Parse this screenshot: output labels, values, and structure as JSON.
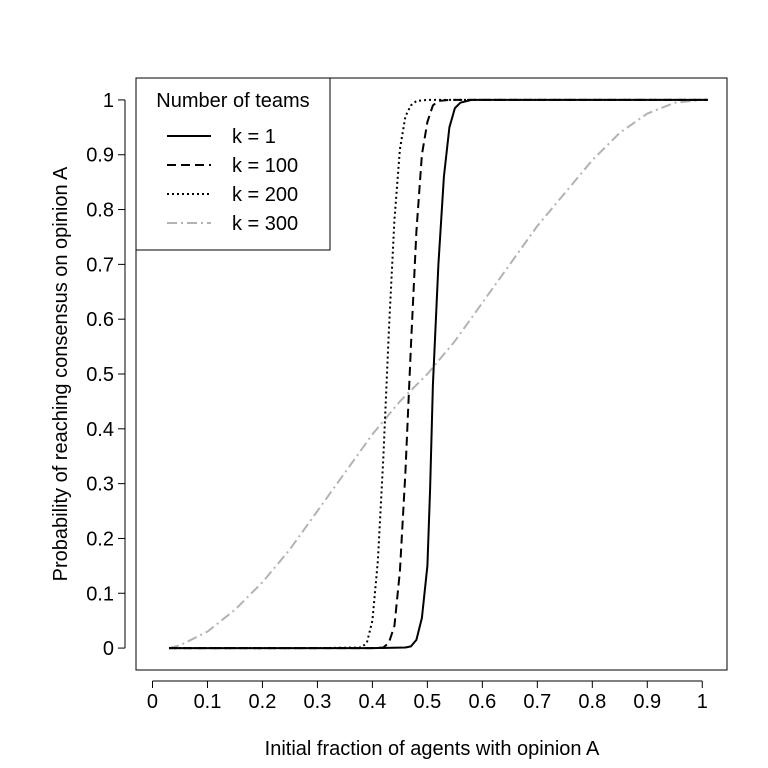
{
  "chart_data": {
    "type": "line",
    "title": "",
    "xlabel": "Initial fraction of agents with opinion A",
    "ylabel": "Probability of reaching consensus on opinion A",
    "xlim": [
      -0.03,
      1.045
    ],
    "ylim": [
      -0.04,
      1.04
    ],
    "grid": false,
    "legend_placement": "top-left",
    "x_ticks": [
      0,
      0.1,
      0.2,
      0.3,
      0.4,
      0.5,
      0.6,
      0.7,
      0.8,
      0.9,
      1
    ],
    "x_tick_labels": [
      "0",
      "0.1",
      "0.2",
      "0.3",
      "0.4",
      "0.5",
      "0.6",
      "0.7",
      "0.8",
      "0.9",
      "1"
    ],
    "y_ticks": [
      0,
      0.1,
      0.2,
      0.3,
      0.4,
      0.5,
      0.6,
      0.7,
      0.8,
      0.9,
      1
    ],
    "y_tick_labels": [
      "0",
      "0.1",
      "0.2",
      "0.3",
      "0.4",
      "0.5",
      "0.6",
      "0.7",
      "0.8",
      "0.9",
      "1"
    ],
    "legend": {
      "title": "Number of teams"
    },
    "series": [
      {
        "name": "k = 1",
        "color": "#000000",
        "dash": "solid",
        "x": [
          0.03,
          0.1,
          0.2,
          0.3,
          0.4,
          0.46,
          0.47,
          0.48,
          0.49,
          0.5,
          0.505,
          0.51,
          0.52,
          0.53,
          0.54,
          0.55,
          0.56,
          0.58,
          0.6,
          0.7,
          0.8,
          0.9,
          1.01
        ],
        "y": [
          0,
          0,
          0,
          0,
          0,
          0.001,
          0.003,
          0.015,
          0.055,
          0.15,
          0.29,
          0.48,
          0.7,
          0.86,
          0.95,
          0.985,
          0.995,
          1,
          1,
          1,
          1,
          1,
          1
        ]
      },
      {
        "name": "k = 100",
        "color": "#000000",
        "dash": "dashed",
        "x": [
          0.03,
          0.1,
          0.2,
          0.3,
          0.4,
          0.42,
          0.43,
          0.44,
          0.45,
          0.46,
          0.47,
          0.48,
          0.49,
          0.5,
          0.51,
          0.52,
          0.54,
          0.6,
          0.7,
          0.8,
          0.9,
          1.01
        ],
        "y": [
          0,
          0,
          0,
          0,
          0,
          0.001,
          0.01,
          0.04,
          0.14,
          0.32,
          0.55,
          0.76,
          0.9,
          0.96,
          0.99,
          0.998,
          1,
          1,
          1,
          1,
          1,
          1
        ]
      },
      {
        "name": "k = 200",
        "color": "#000000",
        "dash": "dotted",
        "x": [
          0.03,
          0.1,
          0.2,
          0.3,
          0.38,
          0.39,
          0.4,
          0.41,
          0.42,
          0.43,
          0.44,
          0.45,
          0.46,
          0.47,
          0.48,
          0.5,
          0.6,
          0.7,
          0.8,
          0.9,
          1.01
        ],
        "y": [
          0,
          0,
          0,
          0,
          0.001,
          0.01,
          0.05,
          0.16,
          0.35,
          0.58,
          0.78,
          0.91,
          0.97,
          0.99,
          0.998,
          1,
          1,
          1,
          1,
          1,
          1
        ]
      },
      {
        "name": "k = 300",
        "color": "#b3b3b3",
        "dash": "dashdot",
        "x": [
          0.03,
          0.05,
          0.1,
          0.15,
          0.2,
          0.25,
          0.3,
          0.35,
          0.4,
          0.45,
          0.5,
          0.55,
          0.6,
          0.65,
          0.7,
          0.75,
          0.8,
          0.85,
          0.9,
          0.95,
          1.0,
          1.01
        ],
        "y": [
          0,
          0.005,
          0.03,
          0.07,
          0.12,
          0.18,
          0.25,
          0.32,
          0.39,
          0.45,
          0.5,
          0.56,
          0.63,
          0.7,
          0.77,
          0.83,
          0.89,
          0.94,
          0.975,
          0.995,
          1,
          1
        ]
      }
    ]
  }
}
